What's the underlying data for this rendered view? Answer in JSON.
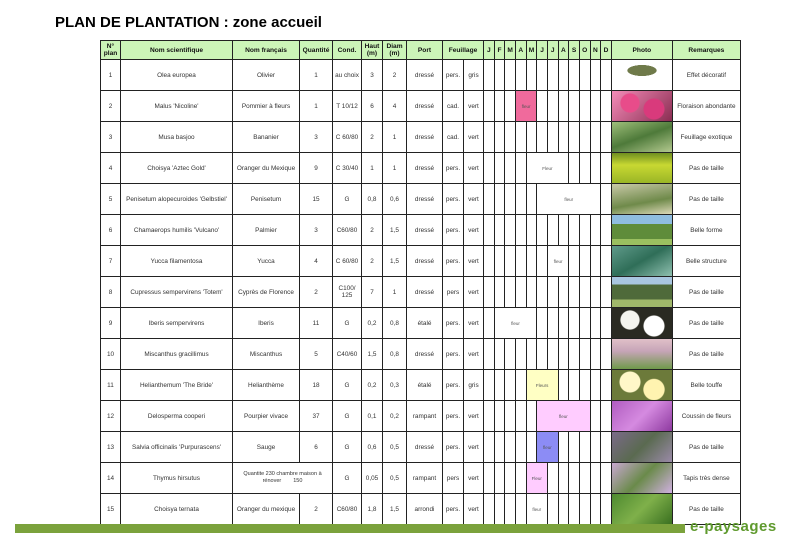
{
  "title": "PLAN DE PLANTATION : zone accueil",
  "headers": {
    "num": "N° plan",
    "sci": "Nom scientifique",
    "fr": "Nom français",
    "qty": "Quantité",
    "cond": "Cond.",
    "haut": "Haut (m)",
    "diam": "Diam (m)",
    "port": "Port",
    "feuillage": "Feuillage",
    "months": [
      "J",
      "F",
      "M",
      "A",
      "M",
      "J",
      "J",
      "A",
      "S",
      "O",
      "N",
      "D"
    ],
    "photo": "Photo",
    "remarques": "Remarques"
  },
  "rows": [
    {
      "num": "1",
      "sci": "Olea europea",
      "fr": "Olivier",
      "qty": "1",
      "cond": "au choix",
      "haut": "3",
      "diam": "2",
      "port": "dressé",
      "f1": "pers.",
      "f2": "gris",
      "remarque": "Effet décoratif",
      "photo": "olive-tree"
    },
    {
      "num": "2",
      "sci": "Malus 'Nicoline'",
      "fr": "Pommier à fleurs",
      "qty": "1",
      "cond": "T 10/12",
      "haut": "6",
      "diam": "4",
      "port": "dressé",
      "f1": "cad.",
      "f2": "vert",
      "remarque": "Floraison abondante",
      "photo": "pink-flowers",
      "flower": {
        "start": 4,
        "end": 5,
        "label": "fleur",
        "color": "#f06a9c"
      }
    },
    {
      "num": "3",
      "sci": "Musa basjoo",
      "fr": "Bananier",
      "qty": "3",
      "cond": "C 60/80",
      "haut": "2",
      "diam": "1",
      "port": "dressé",
      "f1": "cad.",
      "f2": "vert",
      "remarque": "Feuillage exotique",
      "photo": "banana-leaves"
    },
    {
      "num": "4",
      "sci": "Choisya 'Aztec Gold'",
      "fr": "Oranger du Mexique",
      "qty": "9",
      "cond": "C 30/40",
      "haut": "1",
      "diam": "1",
      "port": "dressé",
      "f1": "pers.",
      "f2": "vert",
      "remarque": "Pas de taille",
      "photo": "yellow-shrub",
      "flower": {
        "start": 5,
        "end": 8,
        "label": "Fleur",
        "color": "#ffffff"
      }
    },
    {
      "num": "5",
      "sci": "Penisetum alopecuroides 'Gelbstiel'",
      "fr": "Penisetum",
      "qty": "15",
      "cond": "G",
      "haut": "0,8",
      "diam": "0,6",
      "port": "dressé",
      "f1": "pers.",
      "f2": "vert",
      "remarque": "Pas de taille",
      "photo": "grass",
      "flower": {
        "start": 6,
        "end": 11,
        "label": "fleur",
        "color": "#ffffff"
      }
    },
    {
      "num": "6",
      "sci": "Chamaerops humilis 'Vulcano'",
      "fr": "Palmier",
      "qty": "3",
      "cond": "C60/80",
      "haut": "2",
      "diam": "1,5",
      "port": "dressé",
      "f1": "pers.",
      "f2": "vert",
      "remarque": "Belle forme",
      "photo": "palm"
    },
    {
      "num": "7",
      "sci": "Yucca filamentosa",
      "fr": "Yucca",
      "qty": "4",
      "cond": "C 60/80",
      "haut": "2",
      "diam": "1,5",
      "port": "dressé",
      "f1": "pers.",
      "f2": "vert",
      "remarque": "Belle structure",
      "photo": "yucca",
      "flower": {
        "start": 7,
        "end": 8,
        "label": "fleur",
        "color": "#ffffff"
      }
    },
    {
      "num": "8",
      "sci": "Cupressus sempervirens 'Totem'",
      "fr": "Cyprès de Florence",
      "qty": "2",
      "cond": "C100/ 125",
      "haut": "7",
      "diam": "1",
      "port": "dressé",
      "f1": "pers",
      "f2": "vert",
      "remarque": "Pas de taille",
      "photo": "cypress"
    },
    {
      "num": "9",
      "sci": "Iberis sempervirens",
      "fr": "Iberis",
      "qty": "11",
      "cond": "G",
      "haut": "0,2",
      "diam": "0,8",
      "port": "étalé",
      "f1": "pers.",
      "f2": "vert",
      "remarque": "Pas de taille",
      "photo": "white-flowers",
      "flower": {
        "start": 2,
        "end": 5,
        "label": "fleur",
        "color": "#ffffff"
      }
    },
    {
      "num": "10",
      "sci": "Miscanthus gracillimus",
      "fr": "Miscanthus",
      "qty": "5",
      "cond": "C40/60",
      "haut": "1,5",
      "diam": "0,8",
      "port": "dressé",
      "f1": "pers.",
      "f2": "vert",
      "remarque": "Pas de taille",
      "photo": "miscanthus"
    },
    {
      "num": "11",
      "sci": "Helianthemum 'The Bride'",
      "fr": "Helianthème",
      "qty": "18",
      "cond": "G",
      "haut": "0,2",
      "diam": "0,3",
      "port": "étalé",
      "f1": "pers.",
      "f2": "gris",
      "remarque": "Belle touffe",
      "photo": "cream-flowers",
      "flower": {
        "start": 5,
        "end": 7,
        "label": "Fleurs",
        "color": "#ffffc4"
      }
    },
    {
      "num": "12",
      "sci": "Delosperma cooperi",
      "fr": "Pourpier vivace",
      "qty": "37",
      "cond": "G",
      "haut": "0,1",
      "diam": "0,2",
      "port": "rampant",
      "f1": "pers.",
      "f2": "vert",
      "remarque": "Coussin de fleurs",
      "photo": "purple-carpet",
      "flower": {
        "start": 6,
        "end": 10,
        "label": "fleur",
        "color": "#ffccff"
      }
    },
    {
      "num": "13",
      "sci": "Salvia officinalis 'Purpurascens'",
      "fr": "Sauge",
      "qty": "6",
      "cond": "G",
      "haut": "0,6",
      "diam": "0,5",
      "port": "dressé",
      "f1": "pers.",
      "f2": "vert",
      "remarque": "Pas de taille",
      "photo": "sage",
      "flower": {
        "start": 6,
        "end": 7,
        "label": "fleur",
        "color": "#8c8cf5"
      }
    },
    {
      "num": "14",
      "sci": "Thymus hirsutus",
      "merged_note": "Quantite 230 chambre maison à rénover",
      "merged_qty": "150",
      "cond": "G",
      "haut": "0,05",
      "diam": "0,5",
      "port": "rampant",
      "f1": "pers",
      "f2": "vert",
      "remarque": "Tapis très dense",
      "photo": "thyme",
      "flower": {
        "start": 5,
        "end": 6,
        "label": "Fleur",
        "color": "#ffccff"
      }
    },
    {
      "num": "15",
      "sci": "Choisya ternata",
      "fr": "Oranger du mexique",
      "qty": "2",
      "cond": "C60/80",
      "haut": "1,8",
      "diam": "1,5",
      "port": "arrondi",
      "f1": "pers.",
      "f2": "vert",
      "remarque": "Pas de taille",
      "photo": "green-shrub",
      "flower": {
        "start": 5,
        "end": 6,
        "label": "fleur",
        "color": "#ffffff"
      }
    }
  ],
  "footer": {
    "logo": "e-paysages",
    "bar_color": "#7ba23c"
  }
}
